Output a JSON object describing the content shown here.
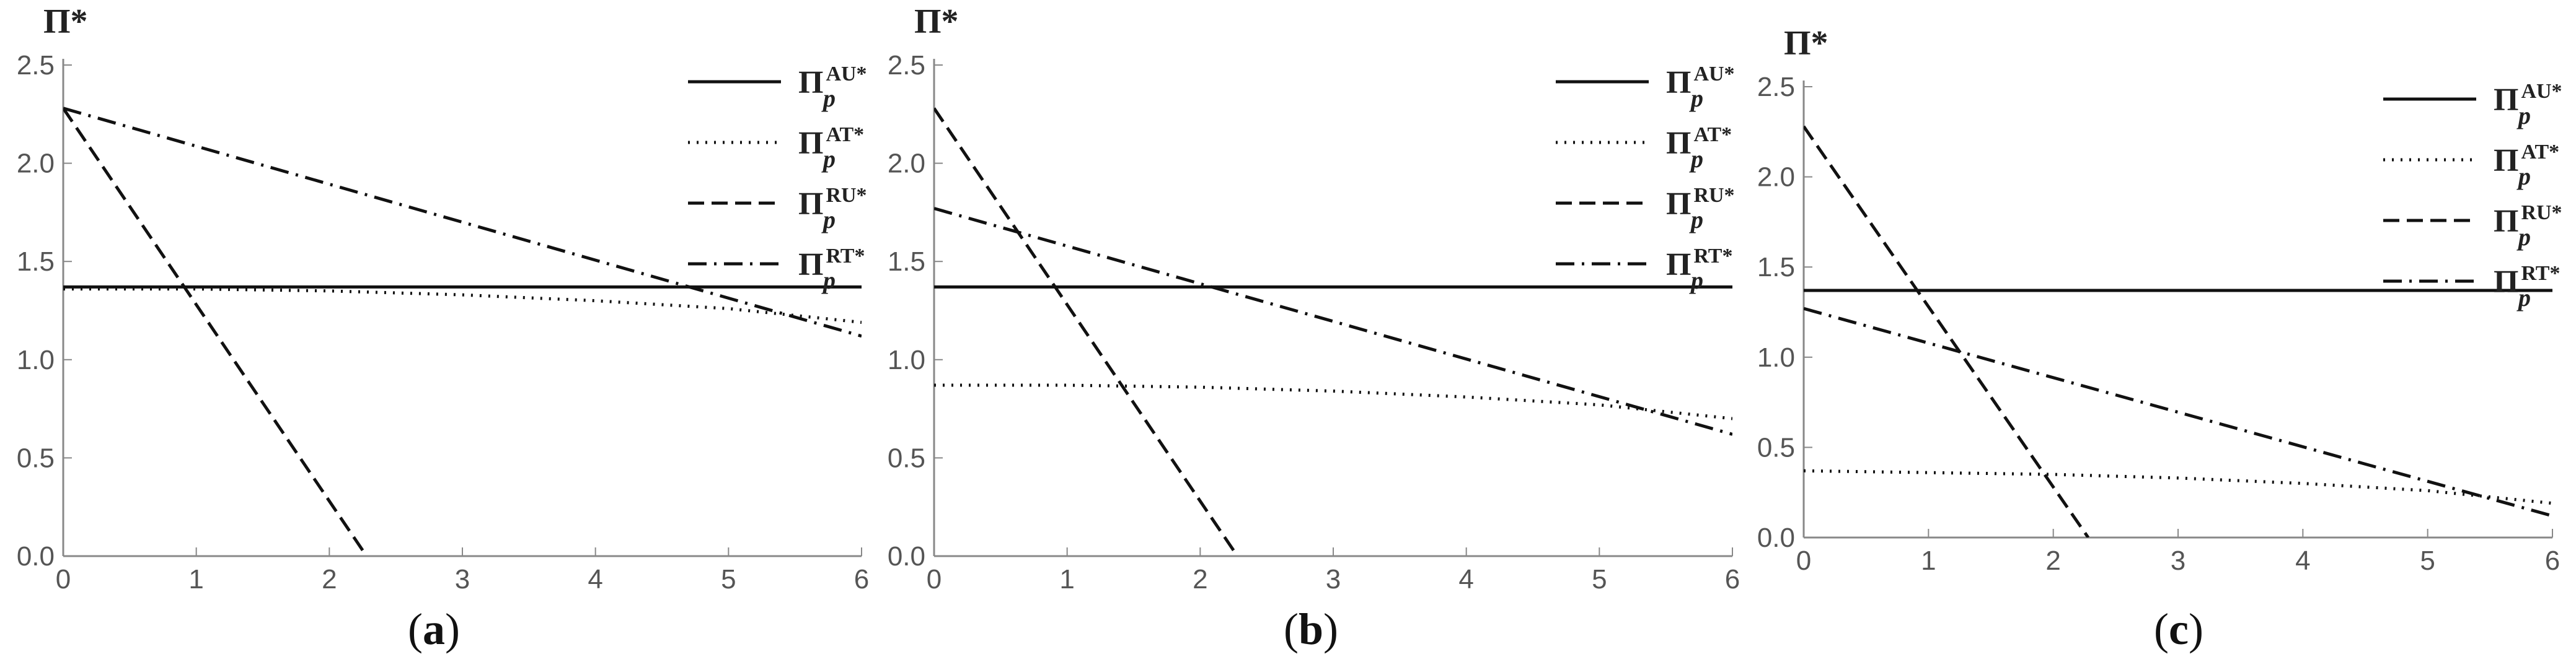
{
  "figure": {
    "panels": [
      {
        "caption_letter": "a",
        "legend": [
          {
            "base": "Π",
            "sub": "p",
            "sup": "AU*"
          },
          {
            "base": "Π",
            "sub": "p",
            "sup": "AT*"
          },
          {
            "base": "Π",
            "sub": "p",
            "sup": "RU*"
          },
          {
            "base": "Π",
            "sub": "p",
            "sup": "RT*"
          }
        ]
      },
      {
        "caption_letter": "b",
        "legend": [
          {
            "base": "Π",
            "sub": "p",
            "sup": "AU*"
          },
          {
            "base": "Π",
            "sub": "p",
            "sup": "AT*"
          },
          {
            "base": "Π",
            "sub": "p",
            "sup": "RU*"
          },
          {
            "base": "Π",
            "sub": "p",
            "sup": "RT*"
          }
        ]
      },
      {
        "caption_letter": "c",
        "legend": [
          {
            "base": "Π",
            "sub": "p",
            "sup": "AU*"
          },
          {
            "base": "Π",
            "sub": "p",
            "sup": "AT*"
          },
          {
            "base": "Π",
            "sub": "p",
            "sup": "RU*"
          },
          {
            "base": "Π",
            "sub": "p",
            "sup": "RT*"
          }
        ]
      }
    ]
  },
  "chart_data": [
    {
      "type": "line",
      "ylabel": "Π*",
      "xlabel": "",
      "xlim": [
        0,
        6
      ],
      "ylim": [
        0,
        2.5
      ],
      "xticks": [
        "0",
        "1",
        "2",
        "3",
        "4",
        "5",
        "6"
      ],
      "yticks": [
        "0.0",
        "0.5",
        "1.0",
        "1.5",
        "2.0",
        "2.5"
      ],
      "grid": false,
      "legend_position": "top-right",
      "series": [
        {
          "style": "solid",
          "x": [
            0,
            6
          ],
          "y": [
            1.37,
            1.37
          ]
        },
        {
          "style": "dotted",
          "x": [
            0,
            1,
            2,
            3,
            4,
            5,
            6
          ],
          "y": [
            1.36,
            1.36,
            1.35,
            1.33,
            1.3,
            1.26,
            1.19
          ]
        },
        {
          "style": "dashed",
          "x": [
            0,
            2.28
          ],
          "y": [
            2.28,
            0.0
          ]
        },
        {
          "style": "dashdot",
          "x": [
            0,
            6
          ],
          "y": [
            2.28,
            1.12
          ]
        }
      ]
    },
    {
      "type": "line",
      "ylabel": "Π*",
      "xlabel": "",
      "xlim": [
        0,
        6
      ],
      "ylim": [
        0,
        2.5
      ],
      "xticks": [
        "0",
        "1",
        "2",
        "3",
        "4",
        "5",
        "6"
      ],
      "yticks": [
        "0.0",
        "0.5",
        "1.0",
        "1.5",
        "2.0",
        "2.5"
      ],
      "grid": false,
      "legend_position": "top-right",
      "series": [
        {
          "style": "solid",
          "x": [
            0,
            6
          ],
          "y": [
            1.37,
            1.37
          ]
        },
        {
          "style": "dotted",
          "x": [
            0,
            1,
            2,
            3,
            4,
            5,
            6
          ],
          "y": [
            0.87,
            0.87,
            0.86,
            0.84,
            0.81,
            0.77,
            0.7
          ]
        },
        {
          "style": "dashed",
          "x": [
            0,
            2.28
          ],
          "y": [
            2.28,
            0.0
          ]
        },
        {
          "style": "dashdot",
          "x": [
            0,
            6
          ],
          "y": [
            1.77,
            0.62
          ]
        }
      ]
    },
    {
      "type": "line",
      "ylabel": "Π*",
      "xlabel": "",
      "xlim": [
        0,
        6
      ],
      "ylim": [
        0,
        2.5
      ],
      "xticks": [
        "0",
        "1",
        "2",
        "3",
        "4",
        "5",
        "6"
      ],
      "yticks": [
        "0.0",
        "0.5",
        "1.0",
        "1.5",
        "2.0",
        "2.5"
      ],
      "grid": false,
      "legend_position": "top-right",
      "series": [
        {
          "style": "solid",
          "x": [
            0,
            6
          ],
          "y": [
            1.37,
            1.37
          ]
        },
        {
          "style": "dotted",
          "x": [
            0,
            1,
            2,
            3,
            4,
            5,
            6
          ],
          "y": [
            0.37,
            0.36,
            0.35,
            0.33,
            0.3,
            0.26,
            0.19
          ]
        },
        {
          "style": "dashed",
          "x": [
            0,
            2.28
          ],
          "y": [
            2.28,
            0.0
          ]
        },
        {
          "style": "dashdot",
          "x": [
            0,
            6
          ],
          "y": [
            1.27,
            0.12
          ]
        }
      ]
    }
  ]
}
